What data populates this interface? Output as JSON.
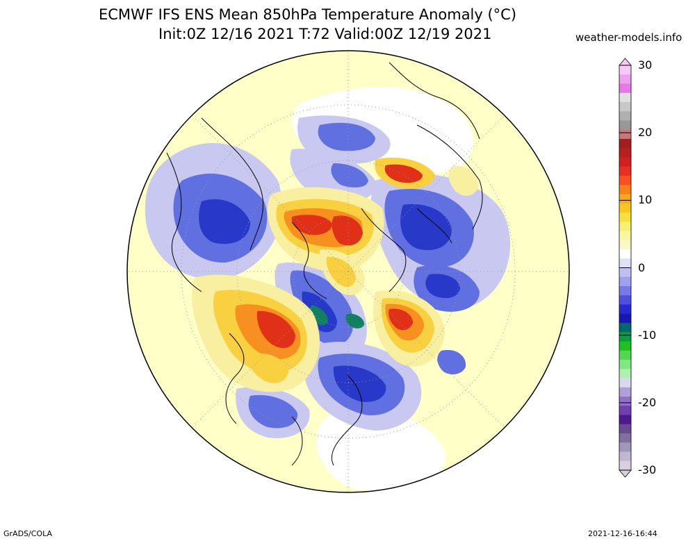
{
  "title": {
    "line1": "ECMWF IFS ENS Mean 850hPa Temperature Anomaly (°C)",
    "line2": "Init:0Z 12/16 2021  T:72 Valid:00Z 12/19 2021"
  },
  "credit": "weather-models.info",
  "footer": {
    "left": "GrADS/COLA",
    "right": "2021-12-16-16:44"
  },
  "colorbar": {
    "ticks": [
      "30",
      "20",
      "10",
      "0",
      "-10",
      "-20",
      "-30"
    ],
    "colors_top_to_bottom": [
      "#f8c8f8",
      "#f0a0f0",
      "#e878e8",
      "#e0e0e0",
      "#c8c8c8",
      "#b0b0b0",
      "#989898",
      "#c87878",
      "#a02020",
      "#b82020",
      "#d02020",
      "#e83020",
      "#f85020",
      "#f88018",
      "#f8a818",
      "#f8c820",
      "#f8e040",
      "#f8f070",
      "#f8f8a0",
      "#f8f8c8",
      "#ffffff",
      "#e0e0f8",
      "#c0c0f0",
      "#a0a0f0",
      "#7878e8",
      "#5050e0",
      "#2828d0",
      "#1818b0",
      "#006868",
      "#00a040",
      "#20c020",
      "#50d850",
      "#80e880",
      "#b0f0b0",
      "#d8d8f0",
      "#b0a0d8",
      "#9070c8",
      "#7040b0",
      "#501890",
      "#6a4a90",
      "#8070a0",
      "#a098b8",
      "#c0b8d0",
      "#d8d0e0"
    ]
  },
  "map": {
    "ocean_color": "#ffffc8",
    "projection": "north-polar-stereographic",
    "anomaly_colors": {
      "warm_light": "#f8f0a0",
      "warm": "#f8d040",
      "warmer": "#f89020",
      "hot": "#e03018",
      "cold_light": "#c8c8f0",
      "cold": "#6070e0",
      "colder": "#2838c8",
      "coldest": "#108060"
    }
  }
}
